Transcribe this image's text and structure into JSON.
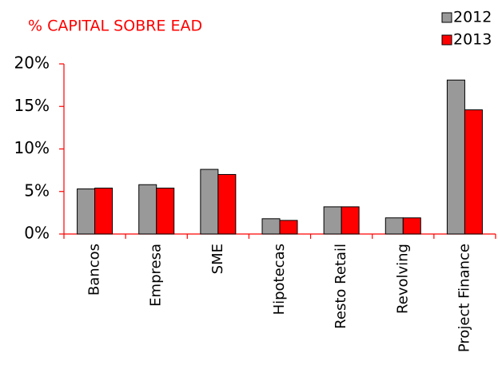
{
  "chart_data": {
    "type": "bar",
    "title": "% CAPITAL SOBRE EAD",
    "categories": [
      "Bancos",
      "Empresa",
      "SME",
      "Hipotecas",
      "Resto Retail",
      "Revolving",
      "Project Finance"
    ],
    "series": [
      {
        "name": "2012",
        "color": "#999999",
        "values": [
          5.3,
          5.8,
          7.6,
          1.8,
          3.2,
          1.9,
          18.1
        ]
      },
      {
        "name": "2013",
        "color": "#ff0000",
        "values": [
          5.4,
          5.4,
          7.0,
          1.6,
          3.2,
          1.9,
          14.6
        ]
      }
    ],
    "ylim": [
      0,
      20
    ],
    "yticks": [
      {
        "value": 0,
        "label": "0%"
      },
      {
        "value": 5,
        "label": "5%"
      },
      {
        "value": 10,
        "label": "10%"
      },
      {
        "value": 15,
        "label": "15%"
      },
      {
        "value": 20,
        "label": "20%"
      }
    ],
    "grid": false,
    "legend": "top-right"
  }
}
